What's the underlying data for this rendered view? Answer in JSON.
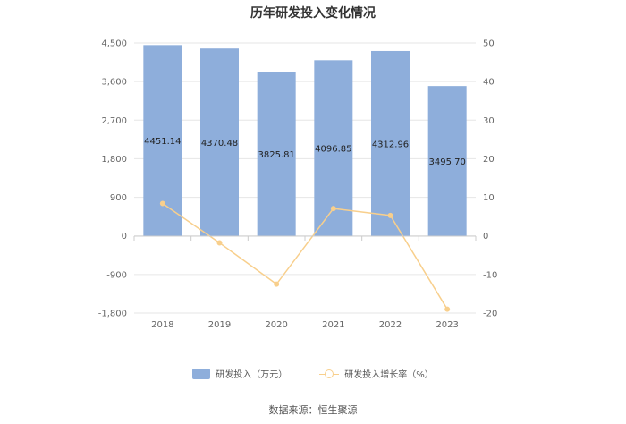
{
  "title": "历年研发投入变化情况",
  "source": "数据来源：恒生聚源",
  "chart_data": {
    "type": "bar",
    "categories": [
      "2018",
      "2019",
      "2020",
      "2021",
      "2022",
      "2023"
    ],
    "series": [
      {
        "name": "研发投入（万元）",
        "type": "bar",
        "axis": "left",
        "values": [
          4451.14,
          4370.48,
          3825.81,
          4096.85,
          4312.96,
          3495.7
        ],
        "labels": [
          "4451.14",
          "4370.48",
          "3825.81",
          "4096.85",
          "4312.96",
          "3495.70"
        ],
        "color": "#8eaedb"
      },
      {
        "name": "研发投入增长率（%）",
        "type": "line",
        "axis": "right",
        "values": [
          8.4,
          -1.8,
          -12.5,
          7.1,
          5.3,
          -19.0
        ],
        "color": "#f8cf8c"
      }
    ],
    "y_left": {
      "ylim": [
        -1800,
        4500
      ],
      "ticks": [
        -1800,
        -900,
        0,
        900,
        1800,
        2700,
        3600,
        4500
      ],
      "tick_labels": [
        "-1,800",
        "-900",
        "0",
        "900",
        "1,800",
        "2,700",
        "3,600",
        "4,500"
      ]
    },
    "y_right": {
      "ylim": [
        -20,
        50
      ],
      "ticks": [
        -20,
        -10,
        0,
        10,
        20,
        30,
        40,
        50
      ],
      "tick_labels": [
        "-20",
        "-10",
        "0",
        "10",
        "20",
        "30",
        "40",
        "50"
      ]
    },
    "grid": true,
    "legend_position": "bottom"
  }
}
